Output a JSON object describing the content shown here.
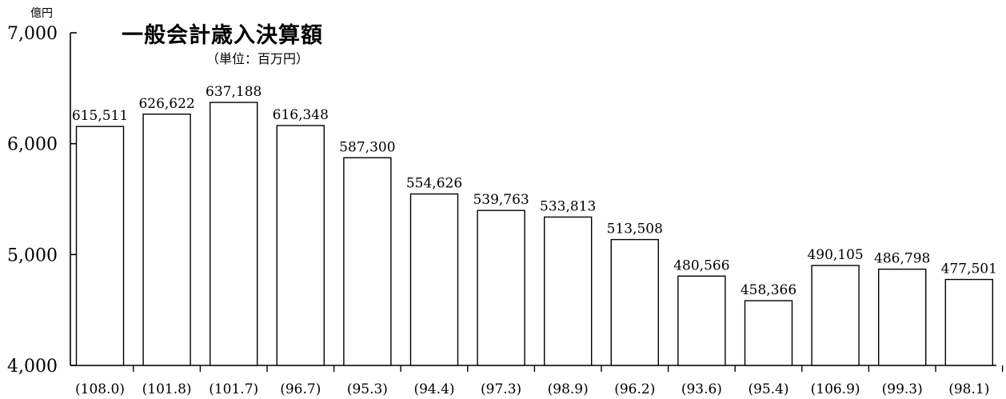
{
  "chart_data": {
    "type": "bar",
    "title": "一般会計歳入決算額",
    "subtitle": "（単位：百万円）",
    "ylabel": "億円",
    "ylim": [
      4000,
      7000
    ],
    "yticks": [
      "4,000",
      "5,000",
      "6,000",
      "7,000"
    ],
    "ytick_values": [
      4000,
      5000,
      6000,
      7000
    ],
    "categories": [
      "(108.0)",
      "(101.8)",
      "(101.7)",
      "(96.7)",
      "(95.3)",
      "(94.4)",
      "(97.3)",
      "(98.9)",
      "(96.2)",
      "(93.6)",
      "(95.4)",
      "(106.9)",
      "(99.3)",
      "(98.1)"
    ],
    "values": [
      615511,
      626622,
      637188,
      616348,
      587300,
      554626,
      539763,
      533813,
      513508,
      480566,
      458366,
      490105,
      486798,
      477501
    ],
    "value_labels": [
      "615,511",
      "626,622",
      "637,188",
      "616,348",
      "587,300",
      "554,626",
      "539,763",
      "533,813",
      "513,508",
      "480,566",
      "458,366",
      "490,105",
      "486,798",
      "477,501"
    ],
    "grid": false,
    "colors": {
      "bar_fill": "#ffffff",
      "bar_stroke": "#000000"
    }
  }
}
